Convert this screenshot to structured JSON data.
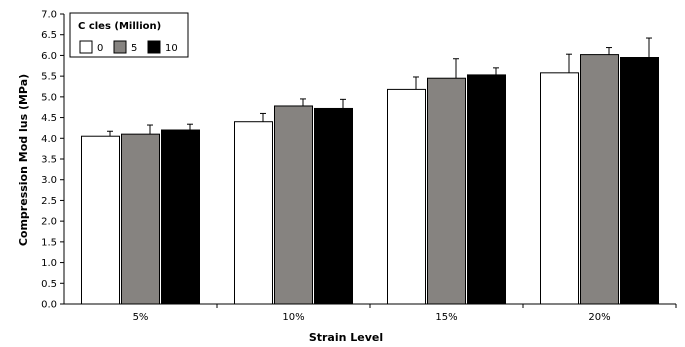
{
  "chart_data": {
    "type": "bar",
    "categories": [
      "5%",
      "10%",
      "15%",
      "20%"
    ],
    "series": [
      {
        "name": "0",
        "color": "#ffffff",
        "values": [
          4.05,
          4.4,
          5.18,
          5.58
        ],
        "error": [
          0.12,
          0.2,
          0.3,
          0.45
        ]
      },
      {
        "name": "5",
        "color": "#868380",
        "values": [
          4.1,
          4.78,
          5.45,
          6.02
        ],
        "error": [
          0.22,
          0.17,
          0.47,
          0.17
        ]
      },
      {
        "name": "10",
        "color": "#000000",
        "values": [
          4.2,
          4.72,
          5.53,
          5.95
        ],
        "error": [
          0.14,
          0.22,
          0.17,
          0.47
        ]
      }
    ],
    "xlabel": "Strain Level",
    "ylabel": "Compression Mod   lus (MPa)",
    "ylim": [
      0,
      7
    ],
    "yticks": [
      "0.0",
      "0.5",
      "1.0",
      "1.5",
      "2.0",
      "2.5",
      "3.0",
      "3.5",
      "4.0",
      "4.5",
      "5.0",
      "5.5",
      "6.0",
      "6.5",
      "7.0"
    ],
    "legend": {
      "title": "C  cles (Million)",
      "position": "top-left"
    },
    "grid": false
  }
}
